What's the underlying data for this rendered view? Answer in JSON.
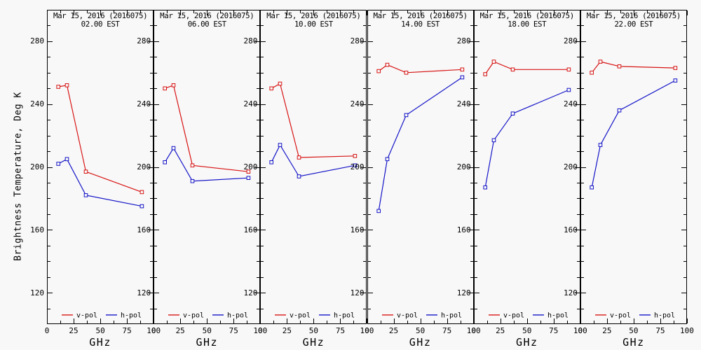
{
  "figure": {
    "background": "#f8f8f8",
    "axis_color": "#000000"
  },
  "chart_data": {
    "type": "line",
    "title_line1": "Mar 15, 2016 (2016075)",
    "ylabel": "Brightness Temperature, Deg K",
    "xlabel": "GHz",
    "xlim": [
      0,
      100
    ],
    "ylim": [
      100,
      300
    ],
    "x_ticks": [
      0,
      25,
      50,
      75,
      100
    ],
    "y_ticks": [
      120,
      160,
      200,
      240,
      280
    ],
    "grid": false,
    "legend_position": "bottom-inside",
    "x": [
      10.65,
      18.7,
      36.5,
      89
    ],
    "series": [
      {
        "key": "v_pol",
        "name": "v-pol",
        "color": "#d81414"
      },
      {
        "key": "h_pol",
        "name": "h-pol",
        "color": "#1414c8"
      }
    ],
    "panels": [
      {
        "time": "02.00 EST",
        "v_pol": [
          251,
          252,
          197,
          184
        ],
        "h_pol": [
          202,
          205,
          182,
          175
        ]
      },
      {
        "time": "06.00 EST",
        "v_pol": [
          250,
          252,
          201,
          197
        ],
        "h_pol": [
          203,
          212,
          191,
          193
        ]
      },
      {
        "time": "10.00 EST",
        "v_pol": [
          250,
          253,
          206,
          207
        ],
        "h_pol": [
          203,
          214,
          194,
          201
        ]
      },
      {
        "time": "14.00 EST",
        "v_pol": [
          261,
          265,
          260,
          262
        ],
        "h_pol": [
          172,
          205,
          233,
          257
        ]
      },
      {
        "time": "18.00 EST",
        "v_pol": [
          259,
          267,
          262,
          262
        ],
        "h_pol": [
          187,
          217,
          234,
          249
        ]
      },
      {
        "time": "22.00 EST",
        "v_pol": [
          260,
          267,
          264,
          263
        ],
        "h_pol": [
          187,
          214,
          236,
          255
        ]
      }
    ]
  }
}
